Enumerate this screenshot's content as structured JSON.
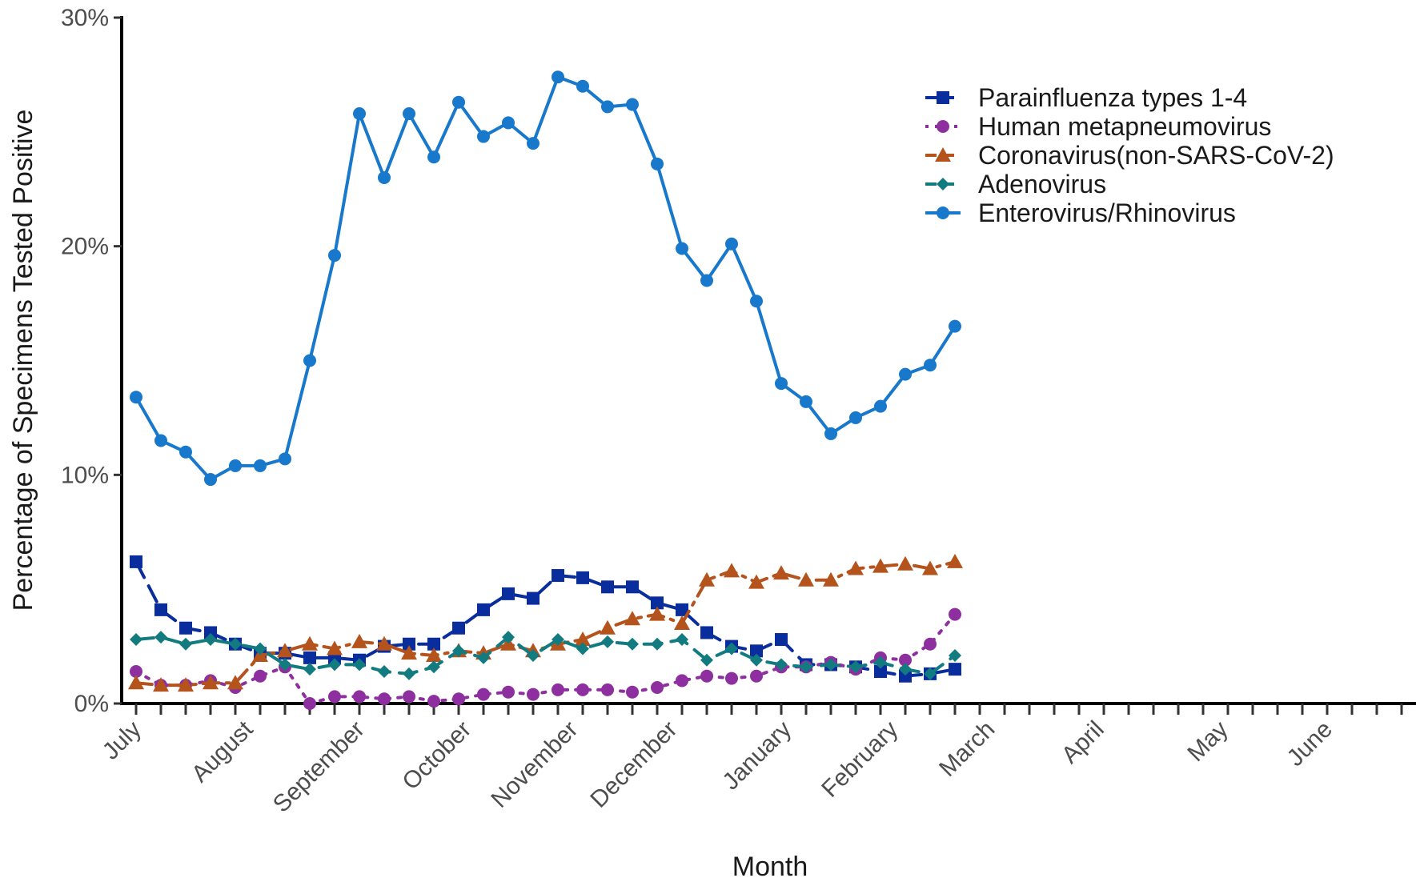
{
  "chart_data": {
    "type": "line",
    "title": "",
    "xlabel": "Month",
    "ylabel": "Percentage of Specimens Tested Positive",
    "ylim": [
      0,
      30
    ],
    "yticks": [
      0,
      10,
      20,
      30
    ],
    "ytick_labels": [
      "0%",
      "10%",
      "20%",
      "30%"
    ],
    "months": [
      "July",
      "August",
      "September",
      "October",
      "November",
      "December",
      "January",
      "February",
      "March",
      "April",
      "May",
      "June"
    ],
    "week_count": 52,
    "legend_position": "top-right",
    "grid": false,
    "series": [
      {
        "name": "Parainfluenza types 1-4",
        "color": "#0a2d9e",
        "line_style": "dashed",
        "marker": "square",
        "values": [
          6.2,
          4.1,
          3.3,
          3.1,
          2.6,
          2.2,
          2.2,
          2.0,
          2.0,
          1.9,
          2.5,
          2.6,
          2.6,
          3.3,
          4.1,
          4.8,
          4.6,
          5.6,
          5.5,
          5.1,
          5.1,
          4.4,
          4.1,
          3.1,
          2.5,
          2.3,
          2.8,
          1.7,
          1.7,
          1.6,
          1.4,
          1.2,
          1.3,
          1.5
        ]
      },
      {
        "name": "Human metapneumovirus",
        "color": "#8e2fa0",
        "line_style": "dotted",
        "marker": "circle",
        "values": [
          1.4,
          0.8,
          0.8,
          1.0,
          0.7,
          1.2,
          1.6,
          0.0,
          0.3,
          0.3,
          0.2,
          0.3,
          0.1,
          0.2,
          0.4,
          0.5,
          0.4,
          0.6,
          0.6,
          0.6,
          0.5,
          0.7,
          1.0,
          1.2,
          1.1,
          1.2,
          1.6,
          1.6,
          1.8,
          1.5,
          2.0,
          1.9,
          2.6,
          3.9
        ]
      },
      {
        "name": "Coronavirus(non-SARS-CoV-2)",
        "color": "#b5531c",
        "line_style": "dashdot",
        "marker": "triangle",
        "values": [
          0.9,
          0.8,
          0.8,
          0.9,
          0.9,
          2.1,
          2.3,
          2.6,
          2.4,
          2.7,
          2.6,
          2.2,
          2.1,
          2.3,
          2.2,
          2.6,
          2.3,
          2.6,
          2.8,
          3.3,
          3.7,
          3.9,
          3.5,
          5.4,
          5.8,
          5.3,
          5.7,
          5.4,
          5.4,
          5.9,
          6.0,
          6.1,
          5.9,
          6.2
        ]
      },
      {
        "name": "Adenovirus",
        "color": "#127b80",
        "line_style": "dashed",
        "marker": "diamond",
        "values": [
          2.8,
          2.9,
          2.6,
          2.8,
          2.6,
          2.4,
          1.7,
          1.5,
          1.7,
          1.7,
          1.4,
          1.3,
          1.6,
          2.3,
          2.0,
          2.9,
          2.1,
          2.8,
          2.4,
          2.7,
          2.6,
          2.6,
          2.8,
          1.9,
          2.4,
          1.9,
          1.7,
          1.6,
          1.7,
          1.6,
          1.8,
          1.5,
          1.3,
          2.1
        ]
      },
      {
        "name": "Enterovirus/Rhinovirus",
        "color": "#1778cc",
        "line_style": "solid",
        "marker": "circle",
        "values": [
          13.4,
          11.5,
          11.0,
          9.8,
          10.4,
          10.4,
          10.7,
          15.0,
          19.6,
          25.8,
          23.0,
          25.8,
          23.9,
          26.3,
          24.8,
          25.4,
          24.5,
          27.4,
          27.0,
          26.1,
          26.2,
          23.6,
          19.9,
          18.5,
          20.1,
          17.6,
          14.0,
          13.2,
          11.8,
          12.5,
          13.0,
          14.4,
          14.8,
          16.5
        ]
      }
    ]
  }
}
